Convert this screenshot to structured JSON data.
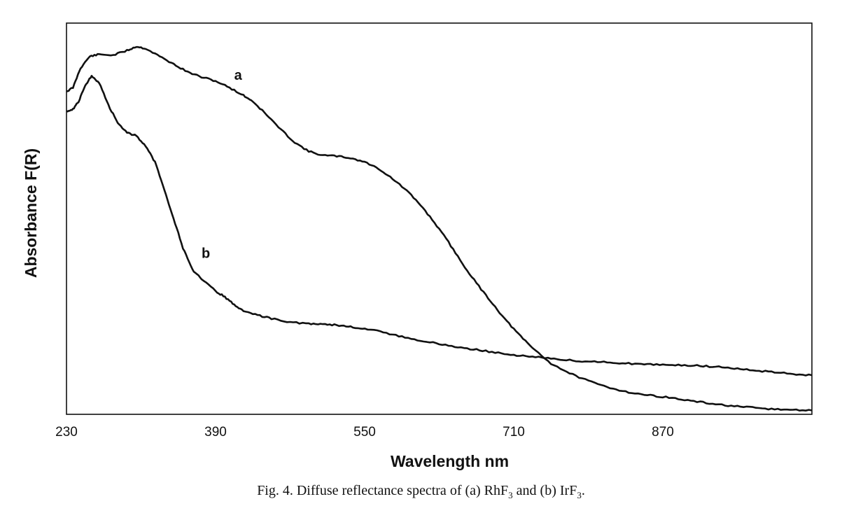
{
  "chart_data": {
    "type": "line",
    "xlabel": "Wavelength nm",
    "ylabel": "Absorbance F(R)",
    "xlim": [
      230,
      1030
    ],
    "ylim": [
      0,
      1
    ],
    "x_ticks": [
      230,
      390,
      550,
      710,
      870
    ],
    "y_ticks_shown": false,
    "grid": false,
    "legend": "none",
    "series": [
      {
        "name": "a",
        "color": "#111111",
        "x": [
          230,
          237,
          245,
          255,
          265,
          280,
          295,
          305,
          315,
          330,
          345,
          360,
          375,
          390,
          405,
          420,
          430,
          445,
          460,
          475,
          490,
          505,
          520,
          535,
          550,
          565,
          580,
          595,
          610,
          625,
          640,
          655,
          670,
          685,
          700,
          715,
          730,
          750,
          770,
          790,
          810,
          830,
          850,
          870,
          890,
          910,
          930,
          950,
          970,
          990,
          1010,
          1030
        ],
        "y": [
          0.825,
          0.835,
          0.885,
          0.915,
          0.92,
          0.918,
          0.93,
          0.94,
          0.935,
          0.915,
          0.895,
          0.875,
          0.862,
          0.852,
          0.835,
          0.815,
          0.8,
          0.765,
          0.728,
          0.695,
          0.672,
          0.662,
          0.66,
          0.655,
          0.645,
          0.628,
          0.602,
          0.572,
          0.535,
          0.49,
          0.44,
          0.385,
          0.335,
          0.29,
          0.245,
          0.205,
          0.17,
          0.13,
          0.105,
          0.085,
          0.07,
          0.058,
          0.05,
          0.045,
          0.038,
          0.031,
          0.025,
          0.02,
          0.016,
          0.013,
          0.011,
          0.01
        ]
      },
      {
        "name": "b",
        "color": "#111111",
        "x": [
          230,
          237,
          243,
          250,
          257,
          265,
          275,
          285,
          295,
          305,
          315,
          325,
          335,
          345,
          355,
          365,
          375,
          390,
          400,
          410,
          420,
          435,
          450,
          470,
          490,
          505,
          520,
          535,
          550,
          570,
          590,
          610,
          630,
          650,
          670,
          690,
          710,
          730,
          750,
          770,
          790,
          810,
          830,
          850,
          870,
          890,
          910,
          930,
          950,
          970,
          990,
          1010,
          1030
        ],
        "y": [
          0.775,
          0.78,
          0.8,
          0.84,
          0.865,
          0.848,
          0.79,
          0.745,
          0.72,
          0.712,
          0.685,
          0.645,
          0.575,
          0.5,
          0.425,
          0.37,
          0.345,
          0.315,
          0.3,
          0.28,
          0.265,
          0.253,
          0.245,
          0.235,
          0.232,
          0.231,
          0.228,
          0.224,
          0.218,
          0.21,
          0.198,
          0.188,
          0.18,
          0.172,
          0.165,
          0.158,
          0.152,
          0.147,
          0.143,
          0.138,
          0.135,
          0.133,
          0.13,
          0.128,
          0.127,
          0.126,
          0.124,
          0.121,
          0.117,
          0.112,
          0.107,
          0.103,
          0.1
        ]
      }
    ],
    "annotations": [
      {
        "text": "a",
        "x": 410,
        "y": 0.855
      },
      {
        "text": "b",
        "x": 375,
        "y": 0.4
      }
    ]
  },
  "caption": {
    "prefix": "Fig. 4. Diffuse reflectance spectra of ",
    "part_a_open": "(a) RhF",
    "sub_a": "3",
    "middle": " and ",
    "part_b_open": "(b) IrF",
    "sub_b": "3",
    "end": "."
  }
}
